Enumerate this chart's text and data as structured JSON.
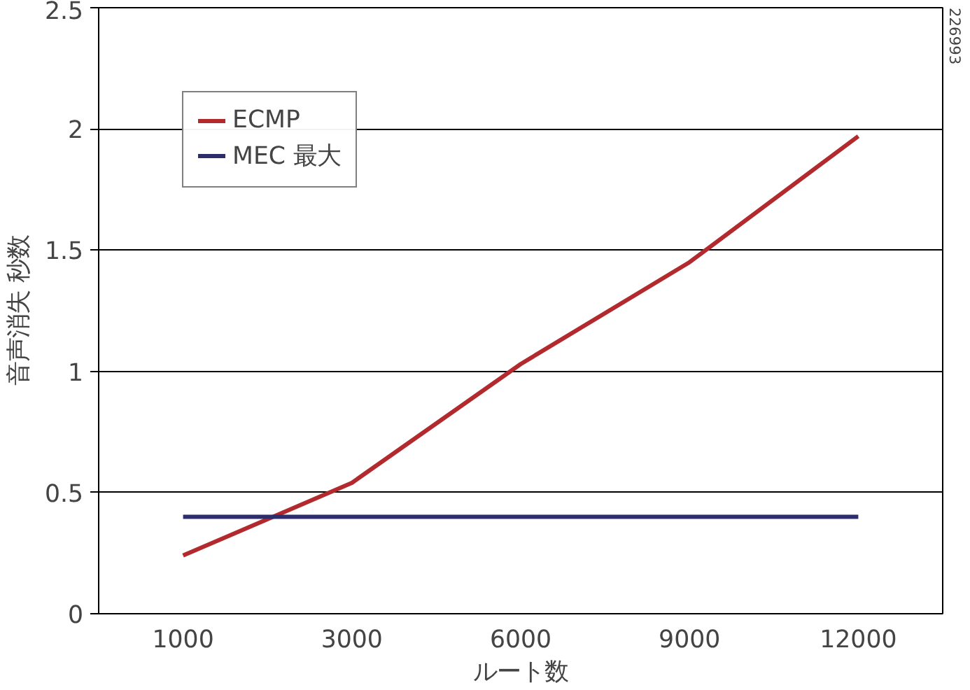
{
  "chart_data": {
    "type": "line",
    "xlabel": "ルート数",
    "ylabel": "音声消失 秒数",
    "categories": [
      "1000",
      "3000",
      "6000",
      "9000",
      "12000"
    ],
    "series": [
      {
        "name": "ECMP",
        "color": "#b22a2e",
        "values": [
          0.24,
          0.54,
          1.03,
          1.45,
          1.97
        ]
      },
      {
        "name": "MEC 最大",
        "color": "#2e2d6b",
        "values": [
          0.4,
          0.4,
          0.4,
          0.4,
          0.4
        ]
      }
    ],
    "ylim": [
      0,
      2.5
    ],
    "yticks": [
      0,
      0.5,
      1,
      1.5,
      2,
      2.5
    ],
    "grid": "y",
    "legend": "top left",
    "marker": "none",
    "annotations": [
      "226993"
    ]
  }
}
